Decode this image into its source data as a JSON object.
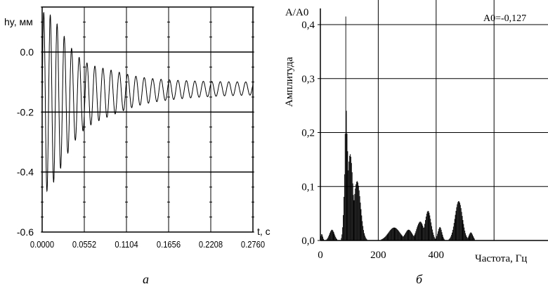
{
  "chart_data": [
    {
      "type": "line",
      "panel_label": "а",
      "ylabel": "hy, мм",
      "xlabel": "t, с",
      "xlim": [
        0,
        0.276
      ],
      "ylim": [
        -0.6,
        0.15
      ],
      "x_ticks": [
        "0.0000",
        "0.0552",
        "0.1104",
        "0.1656",
        "0.2208",
        "0.2760"
      ],
      "y_ticks": [
        "0.0",
        "-0.2",
        "-0.4",
        "-0.6"
      ],
      "grid": true,
      "series": [
        {
          "signal": "damped_oscillation",
          "center_early": -0.17,
          "center_late": -0.12,
          "amplitude_max": 0.3,
          "amplitude_min": 0.02,
          "peak_max": 0.14,
          "trough_min": -0.44,
          "frequency_hz": 90
        }
      ]
    },
    {
      "type": "bar",
      "panel_label": "б",
      "ylabel": "Амплитуда",
      "y_axis_title": "A/A0",
      "annotation": "A0=-0,127",
      "xlabel": "Частота,  Гц",
      "xlim": [
        0,
        700
      ],
      "ylim": [
        0,
        0.43
      ],
      "x_ticks": [
        "0",
        "200",
        "400"
      ],
      "y_ticks": [
        "0,0",
        "0,1",
        "0,2",
        "0,3",
        "0,4"
      ],
      "grid": true,
      "peaks": [
        {
          "x": 5,
          "height": 0.012,
          "width": 5
        },
        {
          "x": 40,
          "height": 0.02,
          "width": 12
        },
        {
          "x": 88,
          "height": 0.375,
          "width": 3
        },
        {
          "x": 90,
          "height": 0.21,
          "width": 9
        },
        {
          "x": 103,
          "height": 0.16,
          "width": 14
        },
        {
          "x": 127,
          "height": 0.11,
          "width": 17
        },
        {
          "x": 255,
          "height": 0.024,
          "width": 28
        },
        {
          "x": 305,
          "height": 0.02,
          "width": 18
        },
        {
          "x": 345,
          "height": 0.035,
          "width": 18
        },
        {
          "x": 372,
          "height": 0.055,
          "width": 15
        },
        {
          "x": 413,
          "height": 0.025,
          "width": 10
        },
        {
          "x": 478,
          "height": 0.073,
          "width": 18
        },
        {
          "x": 520,
          "height": 0.015,
          "width": 10
        }
      ],
      "max_value": 0.415,
      "max_at": 88
    }
  ]
}
